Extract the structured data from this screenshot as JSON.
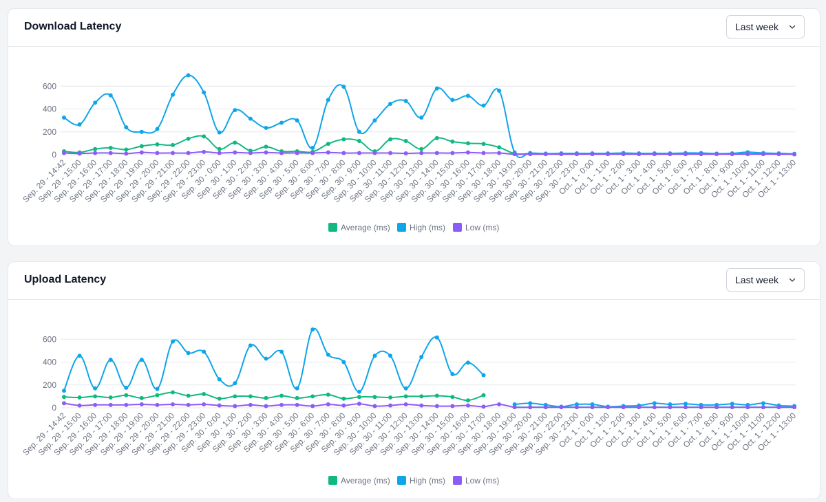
{
  "colors": {
    "average": "#10b981",
    "high": "#0ea5e9",
    "low": "#8b5cf6",
    "grid": "#e5e7eb"
  },
  "icons": {
    "dropdown": "chevron-down-icon"
  },
  "charts": [
    {
      "key": "download",
      "title": "Download Latency",
      "range_label": "Last week",
      "chart_data": {
        "type": "line",
        "title": "Download Latency",
        "y_ticks": [
          0,
          200,
          400,
          600
        ],
        "ylim": [
          0,
          740
        ],
        "legend": [
          "Average (ms)",
          "High (ms)",
          "Low (ms)"
        ],
        "legend_position": "bottom",
        "grid": true,
        "categories": [
          "Sep. 29 - 14:42",
          "Sep. 29 - 15:00",
          "Sep. 29 - 16:00",
          "Sep. 29 - 17:00",
          "Sep. 29 - 18:00",
          "Sep. 29 - 19:00",
          "Sep. 29 - 20:00",
          "Sep. 29 - 21:00",
          "Sep. 29 - 22:00",
          "Sep. 29 - 23:00",
          "Sep. 30 - 0:00",
          "Sep. 30 - 1:00",
          "Sep. 30 - 2:00",
          "Sep. 30 - 3:00",
          "Sep. 30 - 4:00",
          "Sep. 30 - 5:00",
          "Sep. 30 - 6:00",
          "Sep. 30 - 7:00",
          "Sep. 30 - 8:00",
          "Sep. 30 - 9:00",
          "Sep. 30 - 10:00",
          "Sep. 30 - 11:00",
          "Sep. 30 - 12:00",
          "Sep. 30 - 13:00",
          "Sep. 30 - 14:00",
          "Sep. 30 - 15:00",
          "Sep. 30 - 16:00",
          "Sep. 30 - 17:00",
          "Sep. 30 - 18:00",
          "Sep. 30 - 19:00",
          "Sep. 30 - 20:00",
          "Sep. 30 - 21:00",
          "Sep. 30 - 22:00",
          "Sep. 30 - 23:00",
          "Oct. 1 - 0:00",
          "Oct. 1 - 1:00",
          "Oct. 1 - 2:00",
          "Oct. 1 - 3:00",
          "Oct. 1 - 4:00",
          "Oct. 1 - 5:00",
          "Oct. 1 - 6:00",
          "Oct. 1 - 7:00",
          "Oct. 1 - 8:00",
          "Oct. 1 - 9:00",
          "Oct. 1 - 10:00",
          "Oct. 1 - 11:00",
          "Oct. 1 - 12:00",
          "Oct. 1 - 13:00"
        ],
        "series": [
          {
            "name": "Average (ms)",
            "color_key": "average",
            "values": [
              30,
              20,
              50,
              60,
              45,
              75,
              90,
              85,
              140,
              160,
              50,
              105,
              35,
              70,
              30,
              30,
              25,
              95,
              135,
              120,
              30,
              135,
              120,
              50,
              145,
              115,
              100,
              95,
              65,
              10,
              10,
              8,
              8,
              8,
              8,
              8,
              8,
              8,
              8,
              8,
              8,
              8,
              8,
              10,
              8,
              8,
              8,
              5
            ]
          },
          {
            "name": "High (ms)",
            "color_key": "high",
            "values": [
              325,
              265,
              455,
              520,
              240,
              200,
              225,
              525,
              695,
              545,
              195,
              390,
              315,
              235,
              280,
              300,
              60,
              480,
              595,
              200,
              300,
              445,
              470,
              325,
              580,
              480,
              515,
              430,
              560,
              20,
              15,
              10,
              12,
              12,
              12,
              12,
              15,
              12,
              12,
              12,
              15,
              15,
              10,
              12,
              22,
              15,
              12,
              8
            ]
          },
          {
            "name": "Low (ms)",
            "color_key": "low",
            "values": [
              15,
              10,
              15,
              15,
              10,
              20,
              15,
              15,
              15,
              25,
              15,
              20,
              15,
              20,
              15,
              15,
              15,
              20,
              15,
              15,
              15,
              15,
              12,
              15,
              15,
              15,
              20,
              15,
              15,
              5,
              5,
              5,
              5,
              5,
              5,
              5,
              5,
              5,
              5,
              5,
              5,
              5,
              5,
              5,
              5,
              5,
              5,
              3
            ]
          }
        ]
      }
    },
    {
      "key": "upload",
      "title": "Upload Latency",
      "range_label": "Last week",
      "chart_data": {
        "type": "line",
        "title": "Upload Latency",
        "y_ticks": [
          0,
          200,
          400,
          600
        ],
        "ylim": [
          0,
          740
        ],
        "legend": [
          "Average (ms)",
          "High (ms)",
          "Low (ms)"
        ],
        "legend_position": "bottom",
        "grid": true,
        "categories": [
          "Sep. 29 - 14:42",
          "Sep. 29 - 15:00",
          "Sep. 29 - 16:00",
          "Sep. 29 - 17:00",
          "Sep. 29 - 18:00",
          "Sep. 29 - 19:00",
          "Sep. 29 - 20:00",
          "Sep. 29 - 21:00",
          "Sep. 29 - 22:00",
          "Sep. 29 - 23:00",
          "Sep. 30 - 0:00",
          "Sep. 30 - 1:00",
          "Sep. 30 - 2:00",
          "Sep. 30 - 3:00",
          "Sep. 30 - 4:00",
          "Sep. 30 - 5:00",
          "Sep. 30 - 6:00",
          "Sep. 30 - 7:00",
          "Sep. 30 - 8:00",
          "Sep. 30 - 9:00",
          "Sep. 30 - 10:00",
          "Sep. 30 - 11:00",
          "Sep. 30 - 12:00",
          "Sep. 30 - 13:00",
          "Sep. 30 - 14:00",
          "Sep. 30 - 15:00",
          "Sep. 30 - 16:00",
          "Sep. 30 - 17:00",
          "Sep. 30 - 18:00",
          "Sep. 30 - 19:00",
          "Sep. 30 - 20:00",
          "Sep. 30 - 21:00",
          "Sep. 30 - 22:00",
          "Sep. 30 - 23:00",
          "Oct. 1 - 0:00",
          "Oct. 1 - 1:00",
          "Oct. 1 - 2:00",
          "Oct. 1 - 3:00",
          "Oct. 1 - 4:00",
          "Oct. 1 - 5:00",
          "Oct. 1 - 6:00",
          "Oct. 1 - 7:00",
          "Oct. 1 - 8:00",
          "Oct. 1 - 9:00",
          "Oct. 1 - 10:00",
          "Oct. 1 - 11:00",
          "Oct. 1 - 12:00",
          "Oct. 1 - 13:00"
        ],
        "series": [
          {
            "name": "Average (ms)",
            "color_key": "average",
            "values": [
              95,
              90,
              100,
              90,
              110,
              85,
              110,
              135,
              105,
              120,
              80,
              100,
              100,
              85,
              105,
              85,
              100,
              115,
              80,
              95,
              95,
              90,
              100,
              100,
              105,
              95,
              65,
              110,
              null,
              5,
              5,
              5,
              5,
              5,
              5,
              5,
              5,
              5,
              5,
              5,
              5,
              5,
              5,
              5,
              5,
              5,
              5,
              5
            ]
          },
          {
            "name": "High (ms)",
            "color_key": "high",
            "values": [
              150,
              455,
              170,
              420,
              175,
              420,
              165,
              580,
              480,
              490,
              250,
              215,
              545,
              430,
              490,
              170,
              685,
              465,
              400,
              140,
              455,
              455,
              170,
              445,
              615,
              295,
              395,
              285,
              null,
              30,
              40,
              25,
              10,
              30,
              30,
              10,
              15,
              20,
              40,
              30,
              35,
              25,
              25,
              35,
              25,
              40,
              20,
              15
            ]
          },
          {
            "name": "Low (ms)",
            "color_key": "low",
            "values": [
              40,
              20,
              25,
              25,
              25,
              30,
              25,
              30,
              25,
              30,
              20,
              15,
              25,
              15,
              25,
              25,
              15,
              30,
              20,
              35,
              15,
              20,
              30,
              20,
              15,
              15,
              20,
              10,
              30,
              5,
              5,
              5,
              5,
              5,
              5,
              5,
              5,
              5,
              5,
              5,
              5,
              5,
              5,
              5,
              5,
              5,
              5,
              5
            ]
          }
        ]
      }
    }
  ]
}
